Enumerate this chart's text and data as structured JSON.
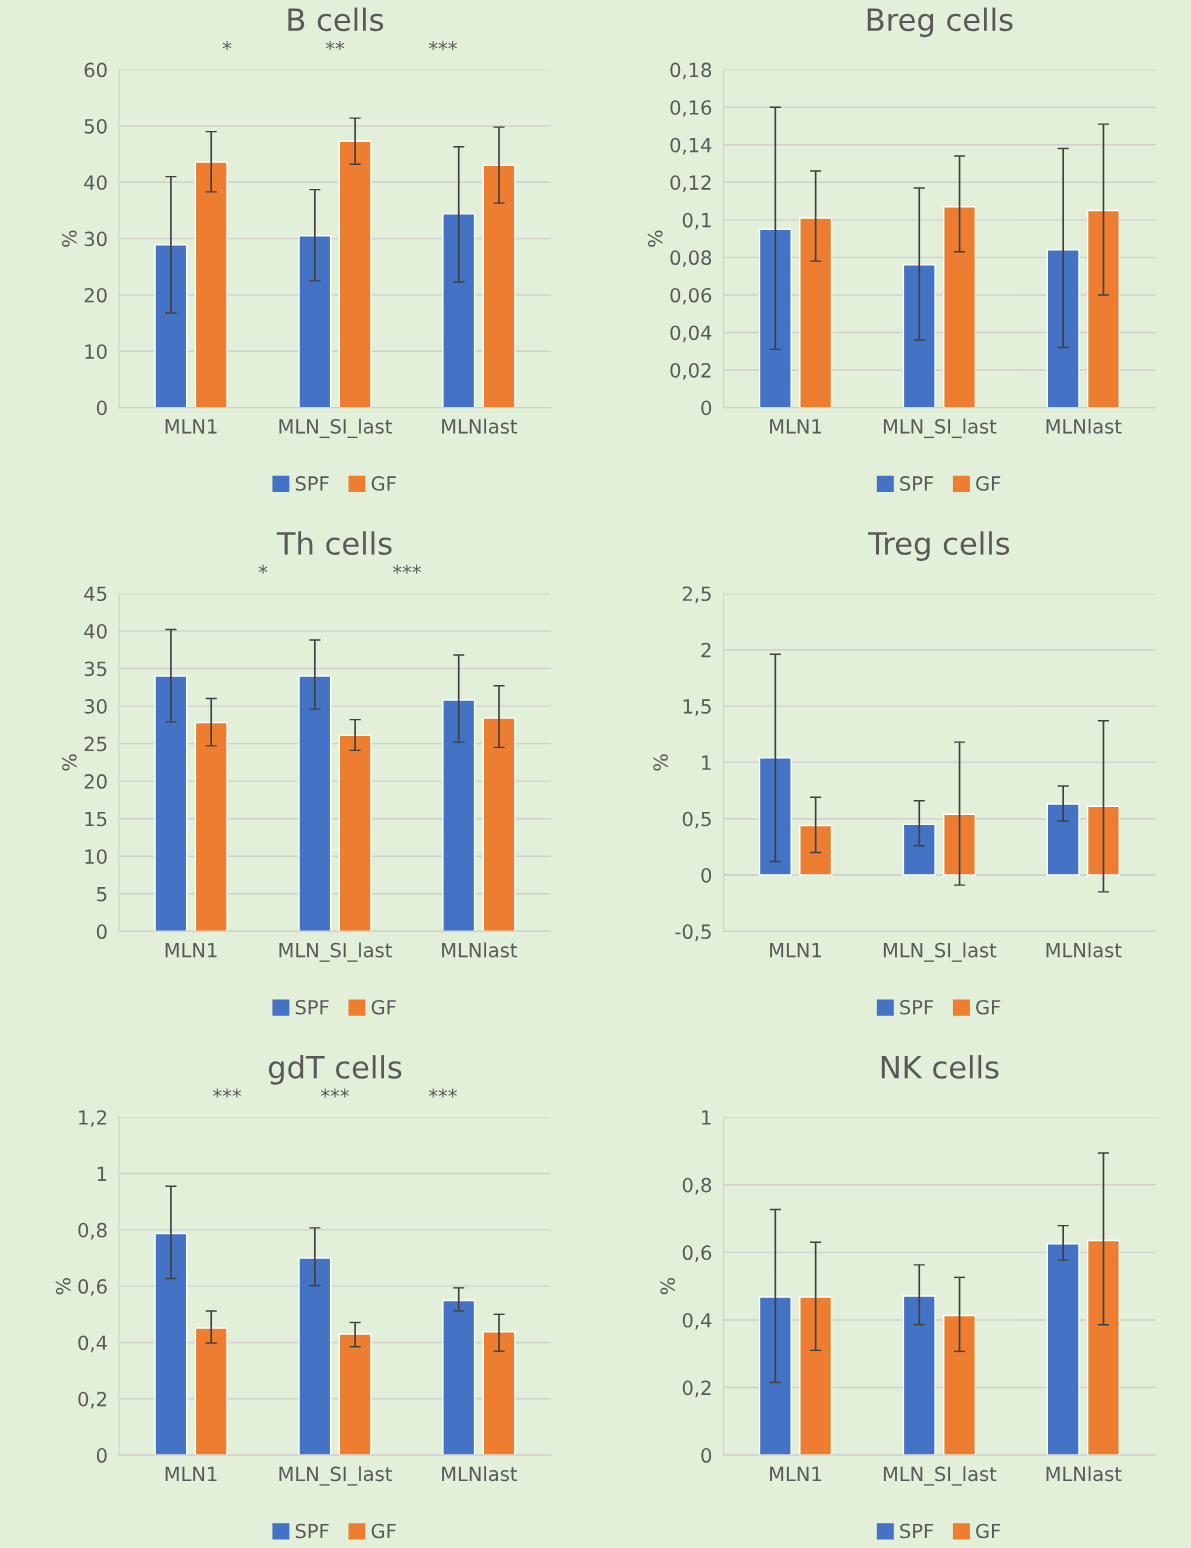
{
  "chart_data": [
    {
      "type": "bar",
      "title": "B cells",
      "ylabel": "%",
      "categories": [
        "MLN1",
        "MLN_SI_last",
        "MLNlast"
      ],
      "series": [
        {
          "name": "SPF",
          "color": "#4472c4",
          "values": [
            28.9,
            30.5,
            34.4
          ],
          "errors": [
            [
              16.8,
              41.0
            ],
            [
              22.5,
              38.7
            ],
            [
              22.3,
              46.3
            ]
          ]
        },
        {
          "name": "GF",
          "color": "#ed7d31",
          "values": [
            43.6,
            47.3,
            43.0
          ],
          "errors": [
            [
              38.3,
              49.0
            ],
            [
              43.2,
              51.4
            ],
            [
              36.3,
              49.8
            ]
          ]
        }
      ],
      "ylim": [
        0,
        60
      ],
      "yticks": [
        0,
        10,
        20,
        30,
        40,
        50,
        60
      ],
      "grid": "y",
      "legend": "bottom",
      "annotations": [
        "*",
        "**",
        "***"
      ]
    },
    {
      "type": "bar",
      "title": "Breg cells",
      "ylabel": "%",
      "categories": [
        "MLN1",
        "MLN_SI_last",
        "MLNlast"
      ],
      "series": [
        {
          "name": "SPF",
          "color": "#4472c4",
          "values": [
            0.095,
            0.076,
            0.084
          ],
          "errors": [
            [
              0.031,
              0.16
            ],
            [
              0.036,
              0.117
            ],
            [
              0.032,
              0.138
            ]
          ]
        },
        {
          "name": "GF",
          "color": "#ed7d31",
          "values": [
            0.101,
            0.107,
            0.105
          ],
          "errors": [
            [
              0.078,
              0.126
            ],
            [
              0.083,
              0.134
            ],
            [
              0.06,
              0.151
            ]
          ]
        }
      ],
      "ylim": [
        0,
        0.18
      ],
      "yticks": [
        0,
        {
          "value": 0.02,
          "label": "0,02"
        },
        {
          "value": 0.04,
          "label": "0,04"
        },
        {
          "value": 0.06,
          "label": "0,06"
        },
        {
          "value": 0.08,
          "label": "0,08"
        },
        {
          "value": 0.1,
          "label": "0,1"
        },
        {
          "value": 0.12,
          "label": "0,12"
        },
        {
          "value": 0.14,
          "label": "0,14"
        },
        {
          "value": 0.16,
          "label": "0,16"
        },
        {
          "value": 0.18,
          "label": "0,18"
        }
      ],
      "grid": "y",
      "legend": "bottom"
    },
    {
      "type": "bar",
      "title": "Th cells",
      "ylabel": "%",
      "categories": [
        "MLN1",
        "MLN_SI_last",
        "MLNlast"
      ],
      "series": [
        {
          "name": "SPF",
          "color": "#4472c4",
          "values": [
            34.0,
            34.0,
            30.8
          ],
          "errors": [
            [
              27.9,
              40.2
            ],
            [
              29.6,
              38.8
            ],
            [
              25.2,
              36.8
            ]
          ]
        },
        {
          "name": "GF",
          "color": "#ed7d31",
          "values": [
            27.8,
            26.1,
            28.4
          ],
          "errors": [
            [
              24.7,
              31.0
            ],
            [
              24.1,
              28.2
            ],
            [
              24.5,
              32.7
            ]
          ]
        }
      ],
      "ylim": [
        0,
        45
      ],
      "yticks": [
        0,
        5,
        10,
        15,
        20,
        25,
        30,
        35,
        40,
        45
      ],
      "grid": "y",
      "legend": "bottom",
      "annotations": [
        "*",
        "***"
      ]
    },
    {
      "type": "bar",
      "title": "Treg cells",
      "ylabel": "%",
      "categories": [
        "MLN1",
        "MLN_SI_last",
        "MLNlast"
      ],
      "series": [
        {
          "name": "SPF",
          "color": "#4472c4",
          "values": [
            1.04,
            0.45,
            0.63
          ],
          "errors": [
            [
              0.12,
              1.96
            ],
            [
              0.26,
              0.66
            ],
            [
              0.48,
              0.79
            ]
          ]
        },
        {
          "name": "GF",
          "color": "#ed7d31",
          "values": [
            0.44,
            0.54,
            0.61
          ],
          "errors": [
            [
              0.2,
              0.69
            ],
            [
              -0.09,
              1.18
            ],
            [
              -0.15,
              1.37
            ]
          ]
        }
      ],
      "ylim": [
        -0.5,
        2.5
      ],
      "yticks": [
        {
          "value": -0.5,
          "label": "-0,5"
        },
        0,
        {
          "value": 0.5,
          "label": "0,5"
        },
        1,
        {
          "value": 1.5,
          "label": "1,5"
        },
        2,
        {
          "value": 2.5,
          "label": "2,5"
        }
      ],
      "grid": "y",
      "legend": "bottom"
    },
    {
      "type": "bar",
      "title": "gdT cells",
      "ylabel": "%",
      "categories": [
        "MLN1",
        "MLN_SI_last",
        "MLNlast"
      ],
      "series": [
        {
          "name": "SPF",
          "color": "#4472c4",
          "values": [
            0.787,
            0.7,
            0.549
          ],
          "errors": [
            [
              0.627,
              0.955
            ],
            [
              0.602,
              0.807
            ],
            [
              0.512,
              0.594
            ]
          ]
        },
        {
          "name": "GF",
          "color": "#ed7d31",
          "values": [
            0.451,
            0.43,
            0.438
          ],
          "errors": [
            [
              0.398,
              0.512
            ],
            [
              0.385,
              0.471
            ],
            [
              0.369,
              0.5
            ]
          ]
        }
      ],
      "ylim": [
        0,
        1.2
      ],
      "yticks": [
        0,
        {
          "value": 0.2,
          "label": "0,2"
        },
        {
          "value": 0.4,
          "label": "0,4"
        },
        {
          "value": 0.6,
          "label": "0,6"
        },
        {
          "value": 0.8,
          "label": "0,8"
        },
        1,
        {
          "value": 1.2,
          "label": "1,2"
        }
      ],
      "grid": "y",
      "legend": "bottom",
      "annotations": [
        "***",
        "***",
        "***"
      ]
    },
    {
      "type": "bar",
      "title": "NK cells",
      "ylabel": "%",
      "categories": [
        "MLN1",
        "MLN_SI_last",
        "MLNlast"
      ],
      "series": [
        {
          "name": "SPF",
          "color": "#4472c4",
          "values": [
            0.468,
            0.471,
            0.625
          ],
          "errors": [
            [
              0.215,
              0.727
            ],
            [
              0.386,
              0.563
            ],
            [
              0.577,
              0.679
            ]
          ]
        },
        {
          "name": "GF",
          "color": "#ed7d31",
          "values": [
            0.468,
            0.413,
            0.635
          ],
          "errors": [
            [
              0.31,
              0.63
            ],
            [
              0.307,
              0.526
            ],
            [
              0.386,
              0.894
            ]
          ]
        }
      ],
      "ylim": [
        0,
        1
      ],
      "yticks": [
        0,
        {
          "value": 0.2,
          "label": "0,2"
        },
        {
          "value": 0.4,
          "label": "0,4"
        },
        {
          "value": 0.6,
          "label": "0,6"
        },
        {
          "value": 0.8,
          "label": "0,8"
        },
        1
      ],
      "grid": "y",
      "legend": "bottom"
    }
  ]
}
